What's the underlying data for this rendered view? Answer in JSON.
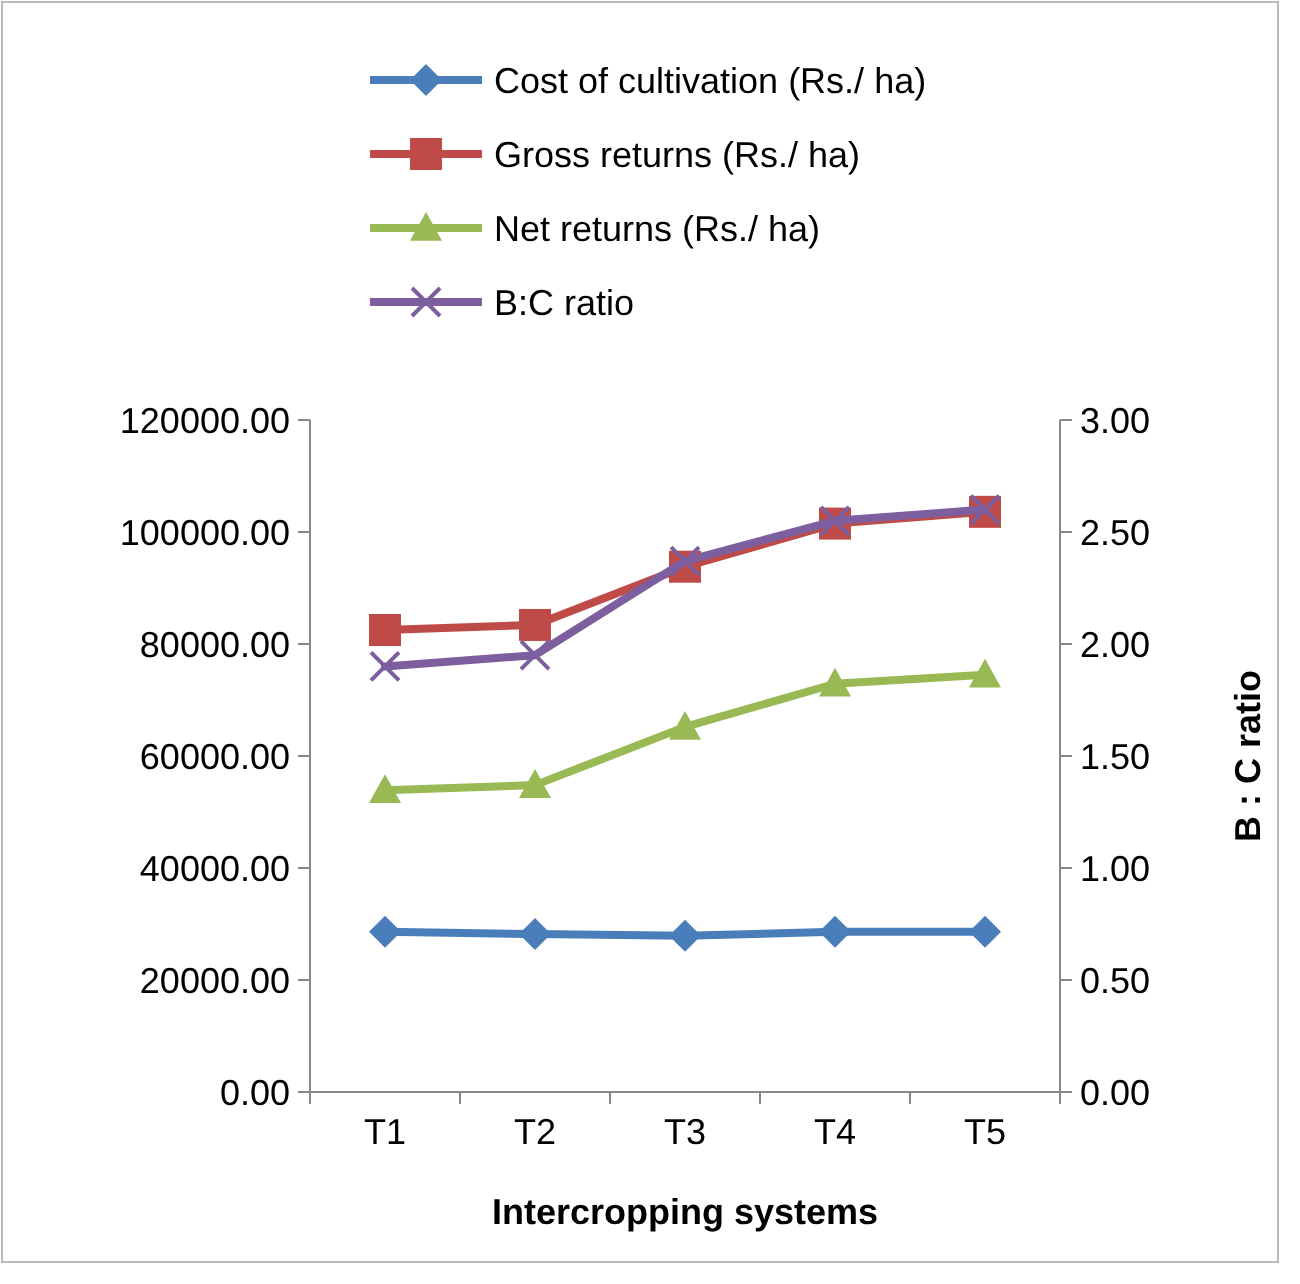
{
  "chart_data": {
    "type": "line",
    "xlabel": "Intercropping systems",
    "y2label": "B : C ratio",
    "categories": [
      "T1",
      "T2",
      "T3",
      "T4",
      "T5"
    ],
    "series": [
      {
        "name": "Cost of cultivation (Rs./ ha)",
        "color": "#4a7ebb",
        "marker": "diamond",
        "values": [
          28600,
          28200,
          27900,
          28600,
          28600
        ]
      },
      {
        "name": "Gross returns (Rs./ ha)",
        "color": "#be4b48",
        "marker": "square",
        "values": [
          82500,
          83400,
          93800,
          101500,
          103600
        ]
      },
      {
        "name": "Net returns (Rs./ ha)",
        "color": "#98b954",
        "marker": "triangle",
        "values": [
          53900,
          54800,
          65200,
          72900,
          74500
        ]
      },
      {
        "name": "B:C ratio",
        "color": "#7d5fa0",
        "marker": "cross",
        "axis": "y2",
        "values": [
          1.9,
          1.95,
          2.37,
          2.55,
          2.6
        ]
      }
    ],
    "ylim": [
      0,
      120000
    ],
    "yticks": [
      {
        "value": 0,
        "label": "0.00"
      },
      {
        "value": 20000,
        "label": "20000.00"
      },
      {
        "value": 40000,
        "label": "40000.00"
      },
      {
        "value": 60000,
        "label": "60000.00"
      },
      {
        "value": 80000,
        "label": "80000.00"
      },
      {
        "value": 100000,
        "label": "100000.00"
      },
      {
        "value": 120000,
        "label": "120000.00"
      }
    ],
    "y2lim": [
      0,
      3
    ],
    "y2ticks": [
      {
        "value": 0,
        "label": "0.00"
      },
      {
        "value": 0.5,
        "label": "0.50"
      },
      {
        "value": 1,
        "label": "1.00"
      },
      {
        "value": 1.5,
        "label": "1.50"
      },
      {
        "value": 2,
        "label": "2.00"
      },
      {
        "value": 2.5,
        "label": "2.50"
      },
      {
        "value": 3,
        "label": "3.00"
      }
    ],
    "grid": false,
    "legend": "top",
    "line_style": "solid"
  }
}
